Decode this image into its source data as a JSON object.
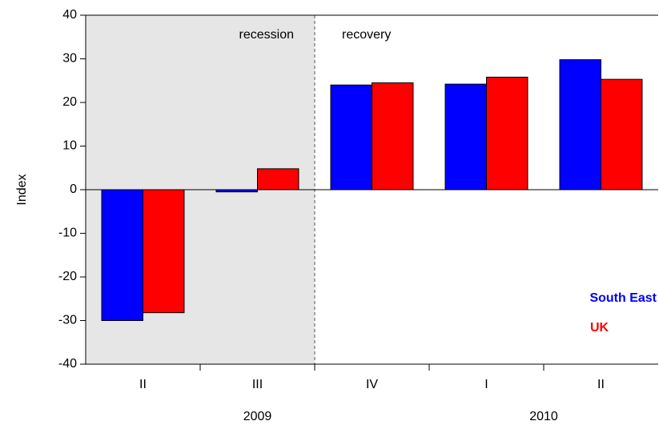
{
  "chart_data": {
    "type": "bar",
    "y_label": "Index",
    "categories": [
      "II",
      "III",
      "IV",
      "I",
      "II"
    ],
    "years": [
      "2009",
      "2010"
    ],
    "annotations": [
      "recession",
      "recovery"
    ],
    "series": [
      {
        "name": "South East",
        "color": "#0000ff",
        "values": [
          -30,
          -0.5,
          24,
          24.2,
          29.8
        ]
      },
      {
        "name": "UK",
        "color": "#ff0000",
        "values": [
          -28.2,
          4.8,
          24.5,
          25.8,
          25.3
        ]
      }
    ],
    "ylim": [
      -40,
      40
    ],
    "yticks": [
      -40,
      -30,
      -20,
      -10,
      0,
      10,
      20,
      30,
      40
    ],
    "legend": "lower right"
  }
}
